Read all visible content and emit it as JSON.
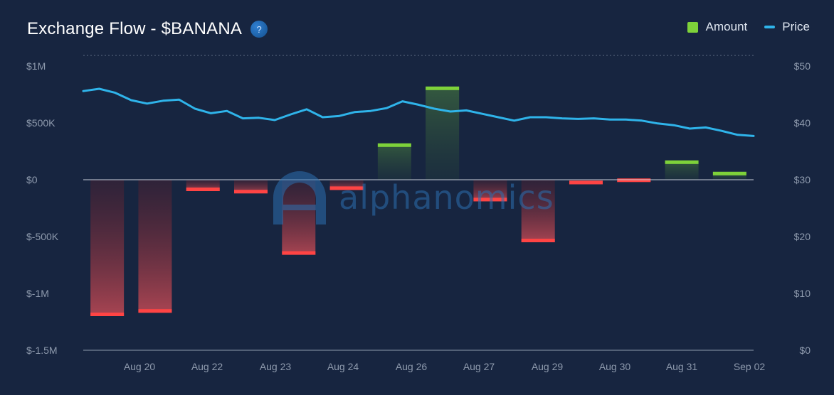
{
  "header": {
    "title": "Exchange Flow - $BANANA",
    "help_icon": "question-icon"
  },
  "legend": {
    "amount_label": "Amount",
    "price_label": "Price"
  },
  "watermark": {
    "text": "alphanomics"
  },
  "colors": {
    "background": "#172540",
    "positive_bar": "#7ed23a",
    "negative_bar": "#ff4444",
    "price_line": "#2fb4ea"
  },
  "chart_data": {
    "type": "bar",
    "title": "Exchange Flow - $BANANA",
    "legend_position": "top-right",
    "grid": "horizontal zero line only",
    "x_ticks": [
      "Aug 20",
      "Aug 22",
      "Aug 23",
      "Aug 24",
      "Aug 26",
      "Aug 27",
      "Aug 29",
      "Aug 30",
      "Aug 31",
      "Sep 02"
    ],
    "y_left": {
      "ticks": [
        "$1M",
        "$500K",
        "$0",
        "$-500K",
        "$-1M",
        "$-1.5M"
      ],
      "range": [
        -1500000,
        1000000
      ]
    },
    "y_right": {
      "ticks": [
        "$50",
        "$40",
        "$30",
        "$20",
        "$10",
        "$0"
      ],
      "range": [
        0,
        50
      ]
    },
    "series": [
      {
        "name": "Amount",
        "type": "bar",
        "values": [
          -1200000,
          -1170000,
          -100000,
          -120000,
          -660000,
          -90000,
          320000,
          820000,
          -190000,
          -550000,
          -40000,
          -20000,
          170000,
          70000
        ]
      },
      {
        "name": "Price",
        "type": "line",
        "values": [
          45.6,
          46.0,
          45.3,
          44.0,
          43.4,
          43.9,
          44.1,
          42.5,
          41.7,
          42.1,
          40.8,
          40.9,
          40.5,
          41.5,
          42.4,
          41.0,
          41.2,
          41.9,
          42.1,
          42.6,
          43.8,
          43.2,
          42.5,
          42.0,
          42.2,
          41.6,
          41.0,
          40.4,
          41.0,
          41.0,
          40.8,
          40.7,
          40.8,
          40.6,
          40.6,
          40.4,
          39.9,
          39.6,
          39.0,
          39.2,
          38.6,
          37.9,
          37.7
        ]
      }
    ]
  }
}
